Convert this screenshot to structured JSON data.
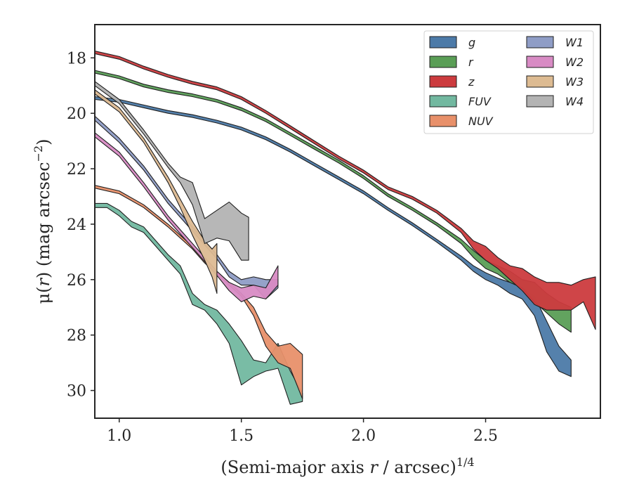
{
  "chart_data": {
    "type": "area",
    "xlabel": "(Semi-major axis r / arcsec)^{1/4}",
    "xlabel_parts": {
      "pre": "(Semi-major axis ",
      "var": "r",
      "mid": " / arcsec)",
      "sup": "1/4"
    },
    "ylabel": "μ(r) (mag arcsec^{-2})",
    "ylabel_parts": {
      "pre": "μ(",
      "var": "r",
      "mid": ") (mag arcsec",
      "sup": "−2",
      "post": ")"
    },
    "xlim": [
      0.9,
      2.97
    ],
    "ylim": [
      31.0,
      16.8
    ],
    "y_inverted": true,
    "xticks": [
      1.0,
      1.5,
      2.0,
      2.5
    ],
    "xtick_labels": [
      "1.0",
      "1.5",
      "2.0",
      "2.5"
    ],
    "yticks": [
      18,
      20,
      22,
      24,
      26,
      28,
      30
    ],
    "ytick_labels": [
      "18",
      "20",
      "22",
      "24",
      "26",
      "28",
      "30"
    ],
    "legend": {
      "position": "top-right",
      "columns": 2
    },
    "series": [
      {
        "name": "g",
        "color": "#4c7aa8",
        "fill_opacity": 0.95,
        "x": [
          0.9,
          1.0,
          1.1,
          1.2,
          1.3,
          1.4,
          1.5,
          1.6,
          1.7,
          1.8,
          1.9,
          2.0,
          2.1,
          2.2,
          2.3,
          2.4,
          2.45,
          2.5,
          2.55,
          2.6,
          2.65,
          2.7,
          2.75,
          2.8,
          2.85
        ],
        "lower": [
          19.4,
          19.5,
          19.7,
          19.9,
          20.05,
          20.25,
          20.5,
          20.85,
          21.3,
          21.8,
          22.3,
          22.8,
          23.4,
          23.95,
          24.55,
          25.15,
          25.5,
          25.75,
          25.95,
          26.1,
          26.3,
          26.6,
          27.5,
          28.4,
          28.9
        ],
        "upper": [
          19.5,
          19.6,
          19.8,
          20.0,
          20.15,
          20.35,
          20.6,
          20.95,
          21.4,
          21.9,
          22.4,
          22.9,
          23.5,
          24.05,
          24.65,
          25.3,
          25.7,
          26.0,
          26.2,
          26.5,
          26.7,
          27.3,
          28.6,
          29.3,
          29.5
        ]
      },
      {
        "name": "r",
        "color": "#5a9e56",
        "fill_opacity": 0.95,
        "x": [
          0.9,
          1.0,
          1.1,
          1.2,
          1.3,
          1.4,
          1.5,
          1.6,
          1.7,
          1.8,
          1.9,
          2.0,
          2.1,
          2.2,
          2.3,
          2.4,
          2.45,
          2.5,
          2.55,
          2.6,
          2.65,
          2.7,
          2.75,
          2.8,
          2.85
        ],
        "lower": [
          18.45,
          18.65,
          18.95,
          19.15,
          19.3,
          19.5,
          19.8,
          20.2,
          20.7,
          21.2,
          21.7,
          22.25,
          22.9,
          23.4,
          23.95,
          24.55,
          24.95,
          25.3,
          25.5,
          25.7,
          26.0,
          26.1,
          26.5,
          26.8,
          27.0
        ],
        "upper": [
          18.55,
          18.75,
          19.05,
          19.25,
          19.4,
          19.6,
          19.9,
          20.3,
          20.8,
          21.3,
          21.8,
          22.35,
          23.0,
          23.5,
          24.05,
          24.7,
          25.2,
          25.6,
          25.8,
          26.1,
          26.3,
          26.8,
          27.2,
          27.6,
          27.9
        ]
      },
      {
        "name": "z",
        "color": "#cc3b3e",
        "fill_opacity": 0.95,
        "x": [
          0.9,
          1.0,
          1.1,
          1.2,
          1.3,
          1.4,
          1.5,
          1.6,
          1.7,
          1.8,
          1.9,
          2.0,
          2.1,
          2.2,
          2.3,
          2.4,
          2.45,
          2.5,
          2.55,
          2.6,
          2.65,
          2.7,
          2.75,
          2.8,
          2.85,
          2.9,
          2.95
        ],
        "lower": [
          17.75,
          17.95,
          18.3,
          18.6,
          18.85,
          19.05,
          19.4,
          19.9,
          20.45,
          21.0,
          21.55,
          22.05,
          22.65,
          23.0,
          23.5,
          24.15,
          24.6,
          24.8,
          25.2,
          25.5,
          25.6,
          25.9,
          26.1,
          26.1,
          26.2,
          26.0,
          25.9
        ],
        "upper": [
          17.85,
          18.05,
          18.4,
          18.7,
          18.95,
          19.15,
          19.5,
          20.0,
          20.55,
          21.1,
          21.65,
          22.15,
          22.75,
          23.1,
          23.6,
          24.3,
          24.9,
          25.3,
          25.6,
          26.0,
          26.4,
          26.9,
          27.1,
          27.1,
          27.1,
          26.8,
          27.8
        ]
      },
      {
        "name": "FUV",
        "color": "#72b8a0",
        "fill_opacity": 0.95,
        "x": [
          0.9,
          0.95,
          1.0,
          1.05,
          1.1,
          1.15,
          1.2,
          1.25,
          1.3,
          1.35,
          1.4,
          1.45,
          1.5,
          1.55,
          1.6,
          1.65,
          1.7,
          1.75
        ],
        "lower": [
          23.25,
          23.25,
          23.5,
          23.9,
          24.1,
          24.6,
          25.1,
          25.5,
          26.5,
          26.9,
          27.1,
          27.6,
          28.2,
          28.9,
          29.0,
          28.3,
          29.3,
          30.1
        ],
        "upper": [
          23.4,
          23.4,
          23.7,
          24.1,
          24.3,
          24.8,
          25.3,
          25.8,
          26.9,
          27.1,
          27.6,
          28.3,
          29.8,
          29.5,
          29.3,
          29.2,
          30.5,
          30.4
        ]
      },
      {
        "name": "NUV",
        "color": "#e8906a",
        "fill_opacity": 0.95,
        "x": [
          0.9,
          1.0,
          1.1,
          1.2,
          1.3,
          1.35,
          1.4,
          1.45,
          1.5,
          1.55,
          1.6,
          1.65,
          1.7,
          1.75
        ],
        "lower": [
          22.6,
          22.8,
          23.3,
          24.0,
          24.8,
          25.3,
          25.7,
          26.1,
          26.5,
          27.0,
          27.9,
          28.4,
          28.3,
          28.7
        ],
        "upper": [
          22.7,
          22.9,
          23.4,
          24.1,
          24.9,
          25.4,
          25.8,
          26.2,
          26.6,
          27.3,
          28.4,
          29.0,
          29.2,
          30.3
        ]
      },
      {
        "name": "W1",
        "color": "#8f9dc6",
        "fill_opacity": 0.95,
        "x": [
          0.9,
          1.0,
          1.1,
          1.2,
          1.3,
          1.4,
          1.45,
          1.5,
          1.55,
          1.6,
          1.65
        ],
        "lower": [
          20.1,
          20.9,
          21.9,
          23.1,
          24.1,
          25.1,
          25.7,
          26.0,
          25.9,
          26.0,
          26.0
        ],
        "upper": [
          20.25,
          21.05,
          22.05,
          23.25,
          24.25,
          25.25,
          25.9,
          26.2,
          26.2,
          26.7,
          26.3
        ]
      },
      {
        "name": "W2",
        "color": "#d88bc4",
        "fill_opacity": 0.95,
        "x": [
          0.9,
          1.0,
          1.1,
          1.2,
          1.3,
          1.4,
          1.45,
          1.5,
          1.55,
          1.6,
          1.65
        ],
        "lower": [
          20.7,
          21.4,
          22.5,
          23.7,
          24.7,
          25.7,
          26.1,
          26.3,
          26.2,
          26.3,
          25.5
        ],
        "upper": [
          20.85,
          21.55,
          22.65,
          23.85,
          24.85,
          25.85,
          26.4,
          26.8,
          26.6,
          26.7,
          26.2
        ]
      },
      {
        "name": "W3",
        "color": "#ddbb92",
        "fill_opacity": 0.95,
        "x": [
          0.9,
          1.0,
          1.1,
          1.2,
          1.25,
          1.3,
          1.35,
          1.38,
          1.4
        ],
        "lower": [
          19.15,
          19.8,
          20.9,
          22.3,
          23.1,
          23.9,
          24.6,
          24.9,
          24.7
        ],
        "upper": [
          19.3,
          19.95,
          21.05,
          22.5,
          23.4,
          24.4,
          25.3,
          25.9,
          26.5
        ]
      },
      {
        "name": "W4",
        "color": "#b3b3b3",
        "fill_opacity": 0.95,
        "x": [
          0.9,
          1.0,
          1.1,
          1.2,
          1.25,
          1.3,
          1.35,
          1.4,
          1.45,
          1.5,
          1.53
        ],
        "lower": [
          18.85,
          19.5,
          20.6,
          21.8,
          22.3,
          22.5,
          23.8,
          23.5,
          23.2,
          23.6,
          23.75
        ],
        "upper": [
          19.0,
          19.65,
          20.75,
          21.95,
          22.5,
          23.3,
          24.7,
          24.5,
          24.6,
          25.3,
          25.3
        ]
      }
    ]
  }
}
